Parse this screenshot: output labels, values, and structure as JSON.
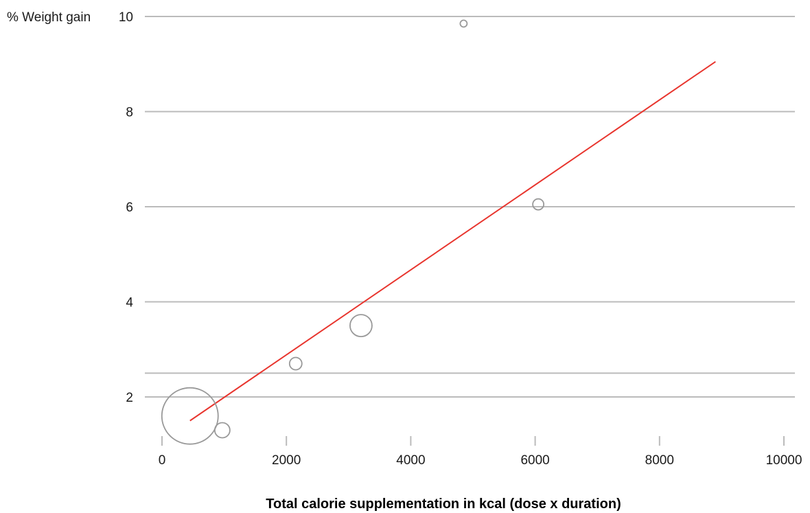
{
  "chart_data": {
    "type": "scatter",
    "title": "",
    "xlabel": "Total calorie supplementation in kcal (dose x duration)",
    "ylabel": "% Weight gain",
    "xlim": [
      0,
      10000
    ],
    "ylim": [
      1,
      10
    ],
    "xticks": [
      0,
      2000,
      4000,
      6000,
      8000,
      10000
    ],
    "yticks": [
      2,
      4,
      6,
      8,
      10
    ],
    "y_gridlines": [
      2,
      2.5,
      4,
      6,
      8,
      10
    ],
    "grid": "horizontal",
    "points": [
      {
        "x": 450,
        "y": 1.6,
        "size": 41
      },
      {
        "x": 970,
        "y": 1.3,
        "size": 11
      },
      {
        "x": 2150,
        "y": 2.7,
        "size": 9
      },
      {
        "x": 3200,
        "y": 3.5,
        "size": 16
      },
      {
        "x": 4850,
        "y": 9.85,
        "size": 5
      },
      {
        "x": 6050,
        "y": 6.05,
        "size": 8
      }
    ],
    "trendline": {
      "x": [
        450,
        8900
      ],
      "y": [
        1.5,
        9.05
      ]
    },
    "colors": {
      "points": "#999999",
      "trendline": "#e8352e",
      "grid": "#bbbbbb",
      "axis": "#bbbbbb"
    }
  }
}
